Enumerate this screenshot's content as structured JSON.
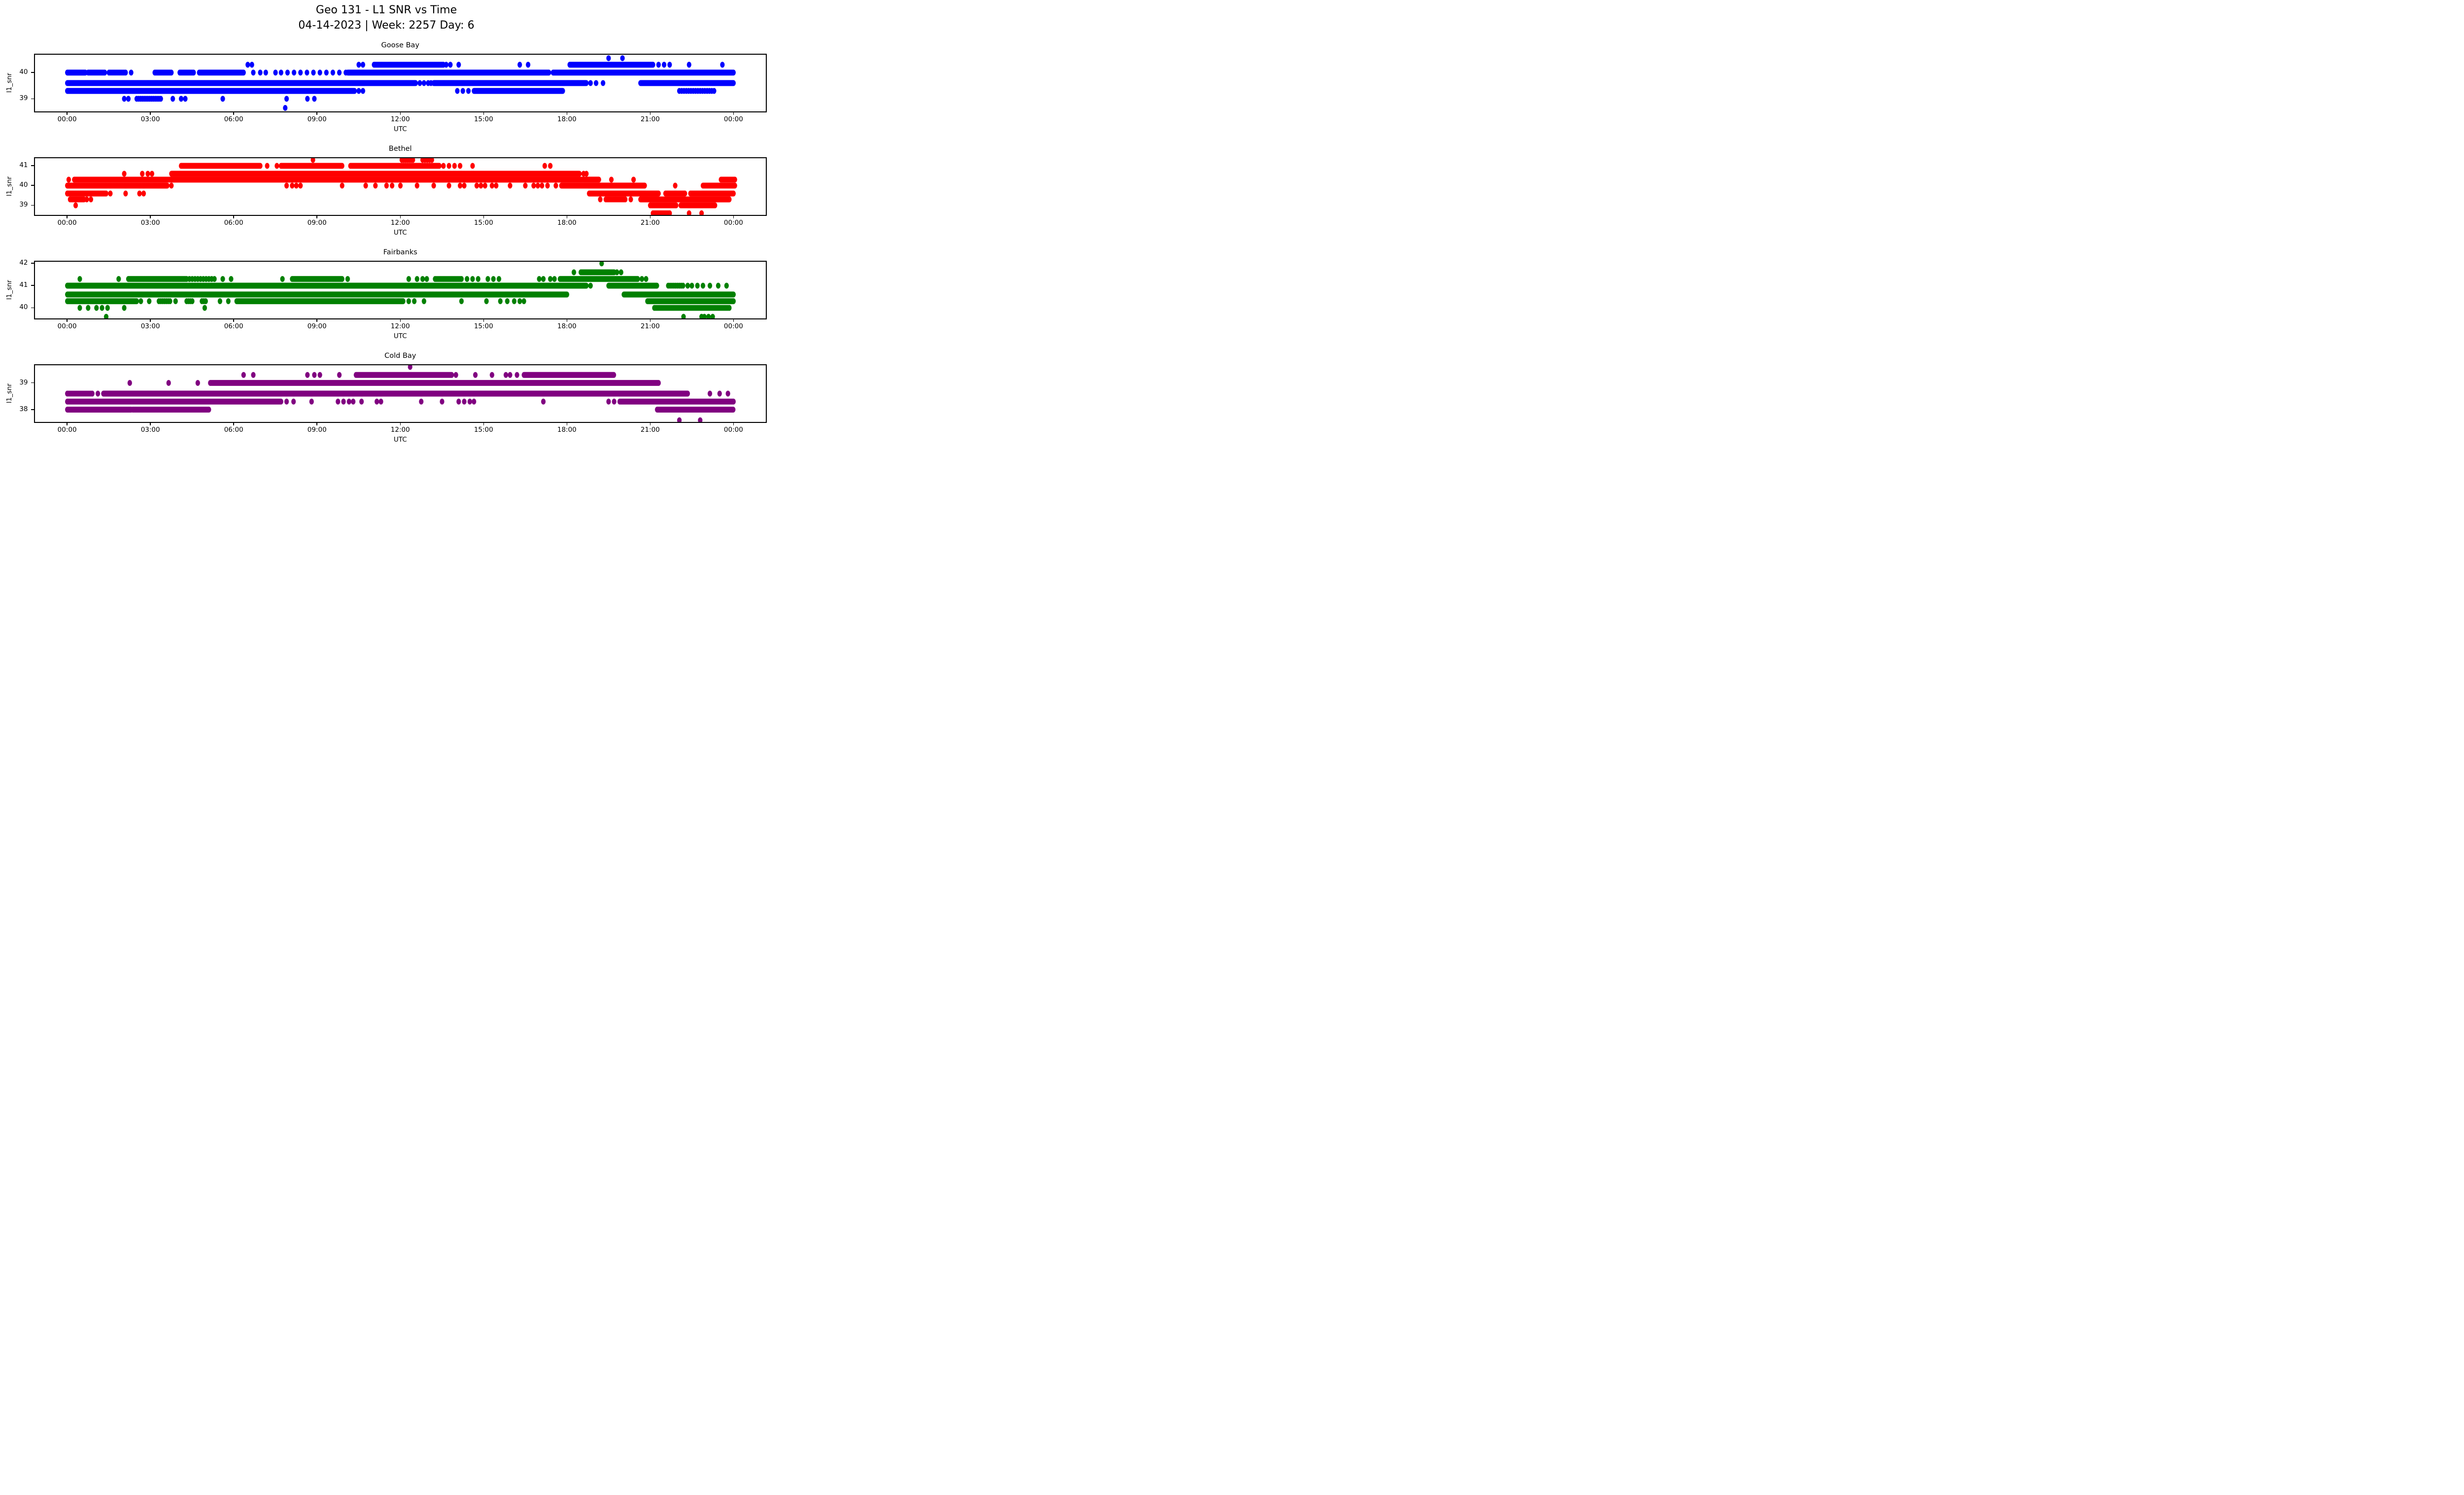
{
  "header": {
    "title_line1": "Geo 131 - L1 SNR vs Time",
    "title_line2": "04-14-2023 | Week: 2257 Day: 6"
  },
  "chart_data": {
    "type": "scatter",
    "title": "Geo 131 - L1 SNR vs Time",
    "subtitle": "04-14-2023 | Week: 2257 Day: 6",
    "xlabel": "UTC",
    "ylabel": "l1_snr",
    "grid": false,
    "legend": "none",
    "xlim_hours": [
      -1.2,
      25.2
    ],
    "x_tick_hours": [
      0,
      3,
      6,
      9,
      12,
      15,
      18,
      21,
      24
    ],
    "x_tick_labels": [
      "00:00",
      "03:00",
      "06:00",
      "09:00",
      "12:00",
      "15:00",
      "18:00",
      "21:00",
      "00:00"
    ],
    "subplots": [
      {
        "title": "Goose Bay",
        "color": "#0000ff",
        "ylim": [
          38.48,
          40.72
        ],
        "yticks": [
          39,
          40
        ],
        "bands": [
          {
            "snr": 40.55,
            "segments": [],
            "dots": [
              19.5,
              20.0
            ]
          },
          {
            "snr": 40.3,
            "segments": [
              [
                11.05,
                13.55,
                2
              ],
              [
                18.1,
                21.1,
                1.5
              ]
            ],
            "dots": [
              6.5,
              6.65,
              10.5,
              10.65,
              13.65,
              13.8,
              14.1,
              16.3,
              16.6,
              21.3,
              21.5,
              21.7,
              22.4,
              23.6
            ]
          },
          {
            "snr": 40.0,
            "segments": [
              [
                0,
                0.65,
                1
              ],
              [
                0.75,
                1.35,
                2
              ],
              [
                1.5,
                2.1,
                3
              ],
              [
                3.15,
                3.75,
                2
              ],
              [
                4.05,
                4.55,
                2
              ],
              [
                4.75,
                6.35,
                1.5
              ],
              [
                7.7,
                10.05,
                14
              ],
              [
                10.1,
                17.35,
                1
              ],
              [
                17.5,
                24.0,
                1
              ]
            ],
            "dots": [
              2.3,
              6.7,
              6.95,
              7.15,
              7.5
            ]
          },
          {
            "snr": 39.6,
            "segments": [
              [
                0,
                12.55,
                1
              ],
              [
                13.2,
                18.7,
                1
              ],
              [
                20.65,
                24.0,
                1
              ]
            ],
            "dots": [
              12.7,
              12.85,
              13.0,
              13.1,
              18.85,
              19.05,
              19.3
            ]
          },
          {
            "snr": 39.3,
            "segments": [
              [
                0,
                10.35,
                1
              ],
              [
                14.65,
                17.85,
                1
              ],
              [
                22.05,
                23.35,
                5
              ]
            ],
            "dots": [
              10.5,
              10.65,
              14.05,
              14.25,
              14.45
            ]
          },
          {
            "snr": 39.0,
            "segments": [
              [
                2.5,
                3.4,
                4
              ]
            ],
            "dots": [
              2.05,
              2.2,
              3.8,
              4.1,
              4.25,
              5.6,
              7.9,
              8.65,
              8.9
            ]
          },
          {
            "snr": 38.65,
            "segments": [],
            "dots": [
              7.85
            ]
          }
        ]
      },
      {
        "title": "Bethel",
        "color": "#ff0000",
        "ylim": [
          38.465,
          41.435
        ],
        "yticks": [
          39,
          40,
          41
        ],
        "bands": [
          {
            "snr": 41.3,
            "segments": [
              [
                12.05,
                12.5,
                4
              ],
              [
                12.8,
                13.2,
                5
              ]
            ],
            "dots": [
              8.85
            ]
          },
          {
            "snr": 41.0,
            "segments": [
              [
                4.1,
                6.95,
                1.5
              ],
              [
                7.7,
                9.9,
                1.5
              ],
              [
                10.2,
                13.4,
                1.5
              ]
            ],
            "dots": [
              7.2,
              7.55,
              13.55,
              13.75,
              13.95,
              14.15,
              14.6,
              17.2,
              17.4
            ]
          },
          {
            "snr": 40.6,
            "segments": [
              [
                3.75,
                18.45,
                1
              ]
            ],
            "dots": [
              2.05,
              2.7,
              2.9,
              3.05,
              18.6,
              18.7
            ]
          },
          {
            "snr": 40.3,
            "segments": [
              [
                0.25,
                3.7,
                2
              ],
              [
                3.7,
                19.15,
                1
              ],
              [
                23.55,
                24.05,
                2
              ]
            ],
            "dots": [
              0.05,
              19.6,
              20.4
            ]
          },
          {
            "snr": 40.0,
            "segments": [
              [
                0,
                3.6,
                1
              ],
              [
                17.8,
                20.8,
                1
              ],
              [
                22.9,
                24.05,
                1.5
              ]
            ],
            "dots": [
              3.75,
              7.9,
              8.1,
              8.25,
              8.4,
              9.9,
              10.75,
              11.1,
              11.5,
              11.7,
              12.0,
              12.6,
              13.2,
              13.75,
              14.15,
              14.3,
              14.75,
              14.9,
              15.05,
              15.3,
              15.45,
              15.95,
              16.5,
              16.8,
              16.95,
              17.1,
              17.3,
              17.6,
              21.9
            ]
          },
          {
            "snr": 39.6,
            "segments": [
              [
                0,
                1.4,
                1.5
              ],
              [
                18.8,
                21.3,
                1
              ],
              [
                21.55,
                22.25,
                1.5
              ],
              [
                22.45,
                24.0,
                1.5
              ]
            ],
            "dots": [
              1.55,
              2.1,
              2.6,
              2.75
            ]
          },
          {
            "snr": 39.3,
            "segments": [
              [
                0.1,
                0.6,
                2
              ],
              [
                19.4,
                20.1,
                3
              ],
              [
                20.65,
                23.85,
                1.2
              ]
            ],
            "dots": [
              0.7,
              0.85,
              19.2,
              20.3
            ]
          },
          {
            "snr": 39.0,
            "segments": [
              [
                21.0,
                21.95,
                2
              ],
              [
                22.1,
                23.35,
                2
              ]
            ],
            "dots": [
              0.3
            ]
          },
          {
            "snr": 38.6,
            "segments": [
              [
                21.1,
                21.7,
                3
              ]
            ],
            "dots": [
              22.4,
              22.85
            ]
          }
        ]
      },
      {
        "title": "Fairbanks",
        "color": "#008000",
        "ylim": [
          39.48,
          42.12
        ],
        "yticks": [
          40,
          41,
          42
        ],
        "bands": [
          {
            "snr": 42.0,
            "segments": [],
            "dots": [
              19.25
            ]
          },
          {
            "snr": 41.6,
            "segments": [
              [
                18.5,
                19.7,
                2
              ]
            ],
            "dots": [
              18.25,
              19.8,
              19.95
            ]
          },
          {
            "snr": 41.3,
            "segments": [
              [
                2.2,
                4.3,
                2
              ],
              [
                4.4,
                5.35,
                6
              ],
              [
                8.1,
                9.9,
                2
              ],
              [
                13.25,
                14.2,
                3
              ],
              [
                17.75,
                20.55,
                1.5
              ]
            ],
            "dots": [
              0.45,
              1.85,
              5.6,
              5.9,
              7.75,
              10.1,
              12.3,
              12.6,
              12.8,
              12.95,
              14.4,
              14.6,
              14.8,
              15.15,
              15.35,
              15.55,
              17.0,
              17.15,
              17.4,
              17.55,
              20.7,
              20.85
            ]
          },
          {
            "snr": 41.0,
            "segments": [
              [
                0,
                18.7,
                1
              ],
              [
                19.5,
                21.25,
                1.2
              ],
              [
                21.65,
                22.2,
                4
              ]
            ],
            "dots": [
              18.85,
              22.35,
              22.5,
              22.7,
              22.9,
              23.15,
              23.45,
              23.75
            ]
          },
          {
            "snr": 40.6,
            "segments": [
              [
                0,
                18.0,
                1
              ],
              [
                20.05,
                24.0,
                1
              ]
            ],
            "dots": []
          },
          {
            "snr": 40.3,
            "segments": [
              [
                0,
                2.5,
                1.2
              ],
              [
                3.3,
                3.7,
                4
              ],
              [
                4.3,
                4.5,
                4
              ],
              [
                4.85,
                5.0,
                4
              ],
              [
                6.1,
                12.1,
                1.2
              ],
              [
                20.9,
                24.0,
                1.5
              ]
            ],
            "dots": [
              2.65,
              2.95,
              3.9,
              5.5,
              5.8,
              12.3,
              12.5,
              12.85,
              14.2,
              15.1,
              15.6,
              15.85,
              16.1,
              16.3,
              16.45
            ]
          },
          {
            "snr": 40.0,
            "segments": [
              [
                21.15,
                23.85,
                3
              ]
            ],
            "dots": [
              0.45,
              0.75,
              1.05,
              1.25,
              1.45,
              2.05,
              4.95
            ]
          },
          {
            "snr": 39.6,
            "segments": [],
            "dots": [
              1.4,
              22.2,
              22.85,
              22.95,
              23.1,
              23.25
            ]
          }
        ]
      },
      {
        "title": "Cold Bay",
        "color": "#800080",
        "ylim": [
          37.5,
          39.7
        ],
        "yticks": [
          38,
          39
        ],
        "bands": [
          {
            "snr": 39.6,
            "segments": [],
            "dots": [
              12.35
            ]
          },
          {
            "snr": 39.3,
            "segments": [
              [
                10.4,
                13.85,
                1.5
              ],
              [
                16.45,
                19.7,
                1.2
              ]
            ],
            "dots": [
              6.35,
              6.7,
              8.65,
              8.9,
              9.1,
              9.8,
              14.0,
              14.7,
              15.3,
              15.8,
              15.95,
              16.2
            ]
          },
          {
            "snr": 39.0,
            "segments": [
              [
                5.15,
                21.3,
                1
              ]
            ],
            "dots": [
              2.25,
              3.65,
              4.7
            ]
          },
          {
            "snr": 38.6,
            "segments": [
              [
                0,
                0.9,
                3
              ],
              [
                1.3,
                22.35,
                1
              ]
            ],
            "dots": [
              1.1,
              23.15,
              23.5,
              23.8
            ]
          },
          {
            "snr": 38.3,
            "segments": [
              [
                0,
                7.7,
                1
              ],
              [
                19.9,
                24.0,
                1
              ]
            ],
            "dots": [
              7.9,
              8.15,
              8.8,
              9.75,
              9.95,
              10.15,
              10.3,
              10.6,
              11.15,
              11.3,
              12.75,
              13.5,
              14.1,
              14.3,
              14.5,
              14.65,
              17.15,
              19.5,
              19.7
            ]
          },
          {
            "snr": 38.0,
            "segments": [
              [
                0,
                2.3,
                1
              ],
              [
                2.35,
                5.1,
                1.5
              ],
              [
                21.25,
                24.0,
                1.2
              ]
            ],
            "dots": []
          },
          {
            "snr": 37.6,
            "segments": [],
            "dots": [
              22.05,
              22.8
            ]
          }
        ]
      }
    ]
  }
}
